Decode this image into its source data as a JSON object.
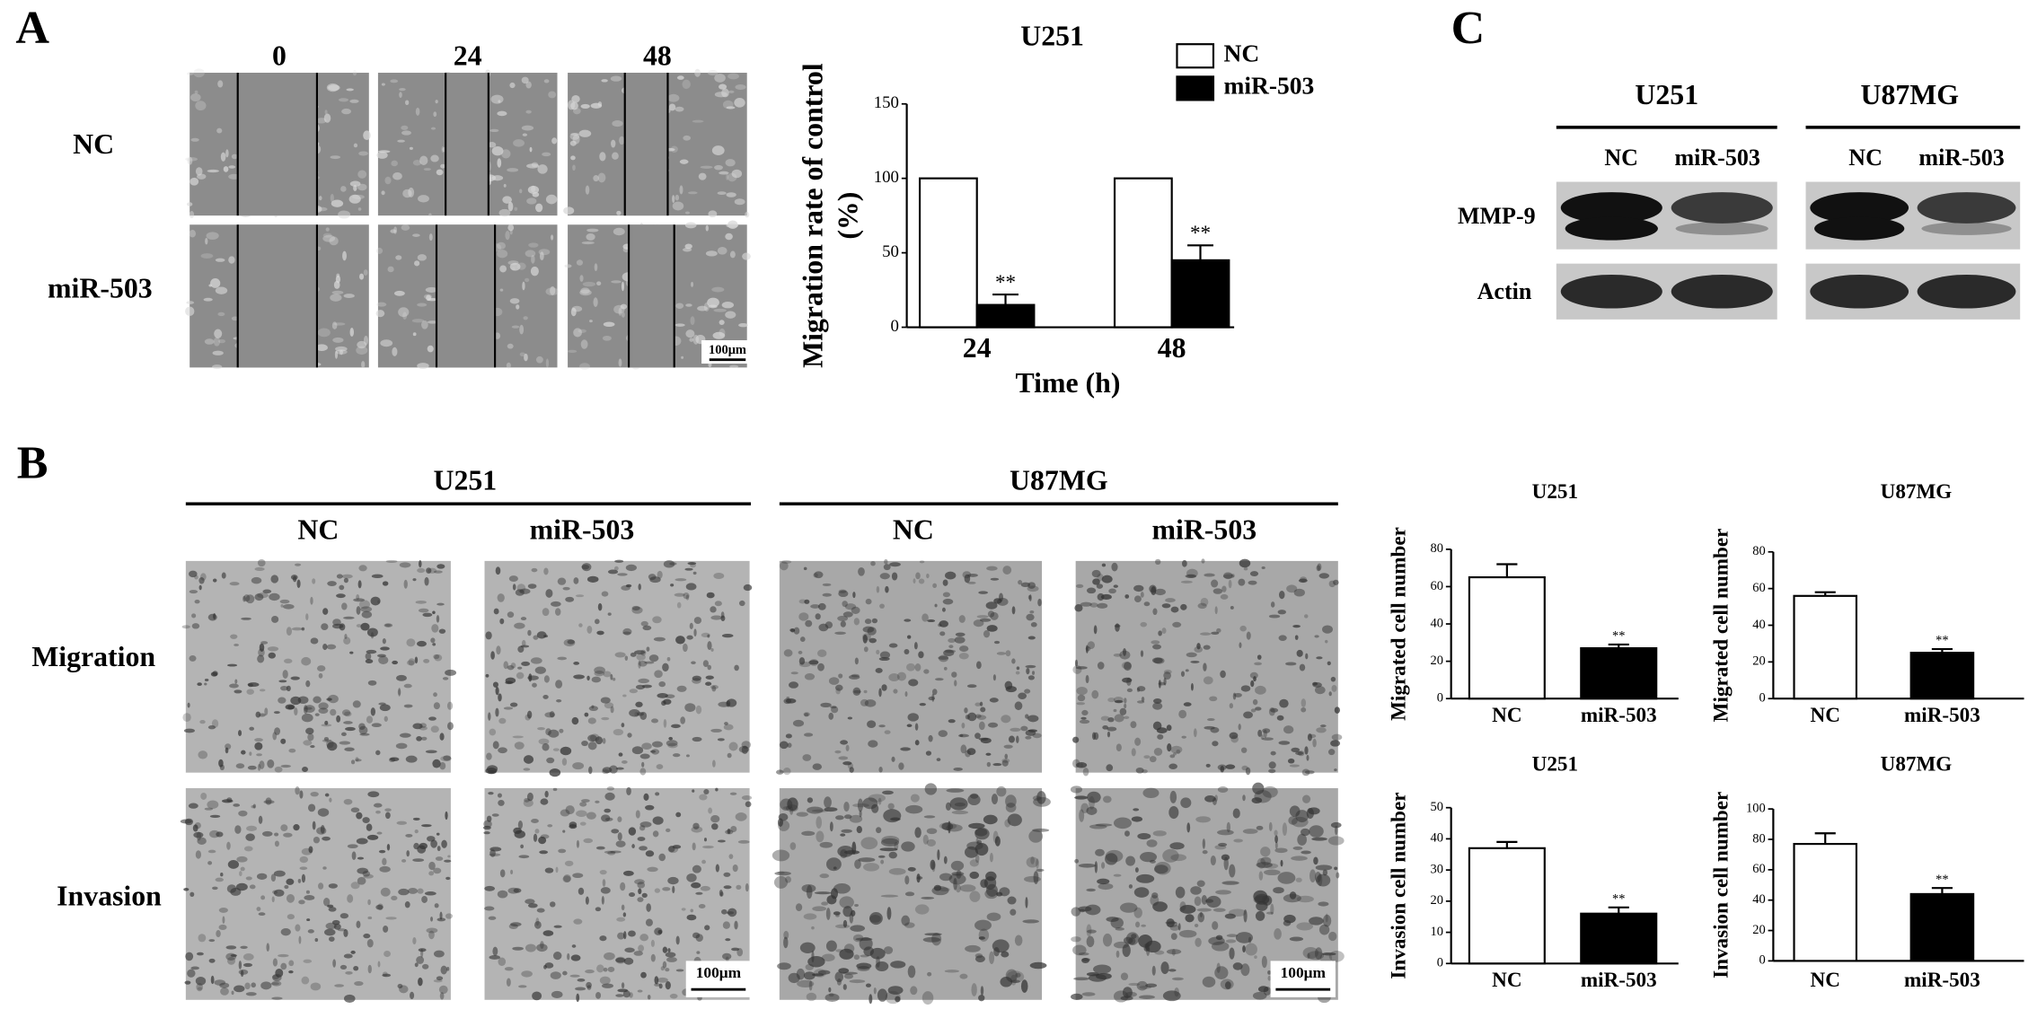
{
  "panels": {
    "a": "A",
    "b": "B",
    "c": "C"
  },
  "panel_a": {
    "time_labels": [
      "0",
      "24",
      "48"
    ],
    "row_labels": [
      "NC",
      "miR-503"
    ],
    "scale_bar": "100μm"
  },
  "panel_b": {
    "groups": [
      {
        "name": "U251",
        "conditions": [
          "NC",
          "miR-503"
        ]
      },
      {
        "name": "U87MG",
        "conditions": [
          "NC",
          "miR-503"
        ]
      }
    ],
    "row_labels": [
      "Migration",
      "Invasion"
    ],
    "scale_bars": [
      "100μm",
      "100μm"
    ]
  },
  "panel_c": {
    "groups": [
      {
        "name": "U251",
        "conditions": [
          "NC",
          "miR-503"
        ]
      },
      {
        "name": "U87MG",
        "conditions": [
          "NC",
          "miR-503"
        ]
      }
    ],
    "row_labels": [
      "MMP-9",
      "Actin"
    ]
  },
  "chart_data": [
    {
      "type": "grouped_bar",
      "title": "U251",
      "xlabel": "Time (h)",
      "ylabel": [
        "Migration rate of control",
        "(%)"
      ],
      "categories": [
        "24",
        "48"
      ],
      "series": [
        {
          "name": "NC",
          "color": "#ffffff",
          "values": [
            100,
            100
          ]
        },
        {
          "name": "miR-503",
          "color": "#000000",
          "values": [
            15,
            45
          ],
          "errors": [
            7,
            10
          ],
          "annotations": [
            "**",
            "**"
          ]
        }
      ],
      "ylim": [
        0,
        150
      ],
      "yticks": [
        0,
        50,
        100,
        150
      ]
    },
    {
      "type": "bar",
      "title": "U251",
      "ylabel": [
        "Migrated cell number"
      ],
      "categories": [
        "NC",
        "miR-503"
      ],
      "colors": [
        "#ffffff",
        "#000000"
      ],
      "values": [
        65,
        27
      ],
      "errors": [
        7,
        2
      ],
      "annotations": [
        null,
        "**"
      ],
      "ylim": [
        0,
        80
      ],
      "yticks": [
        0,
        20,
        40,
        60,
        80
      ]
    },
    {
      "type": "bar",
      "title": "U87MG",
      "ylabel": [
        "Migrated cell number"
      ],
      "categories": [
        "NC",
        "miR-503"
      ],
      "colors": [
        "#ffffff",
        "#000000"
      ],
      "values": [
        56,
        25
      ],
      "errors": [
        2,
        2
      ],
      "annotations": [
        null,
        "**"
      ],
      "ylim": [
        0,
        80
      ],
      "yticks": [
        0,
        20,
        40,
        60,
        80
      ]
    },
    {
      "type": "bar",
      "title": "U251",
      "ylabel": [
        "Invasion cell number"
      ],
      "categories": [
        "NC",
        "miR-503"
      ],
      "colors": [
        "#ffffff",
        "#000000"
      ],
      "values": [
        37,
        16
      ],
      "errors": [
        2,
        2
      ],
      "annotations": [
        null,
        "**"
      ],
      "ylim": [
        0,
        50
      ],
      "yticks": [
        0,
        10,
        20,
        30,
        40,
        50
      ]
    },
    {
      "type": "bar",
      "title": "U87MG",
      "ylabel": [
        "Invasion cell number"
      ],
      "categories": [
        "NC",
        "miR-503"
      ],
      "colors": [
        "#ffffff",
        "#000000"
      ],
      "values": [
        77,
        44
      ],
      "errors": [
        7,
        4
      ],
      "annotations": [
        null,
        "**"
      ],
      "ylim": [
        0,
        100
      ],
      "yticks": [
        0,
        20,
        40,
        60,
        80,
        100
      ]
    }
  ]
}
